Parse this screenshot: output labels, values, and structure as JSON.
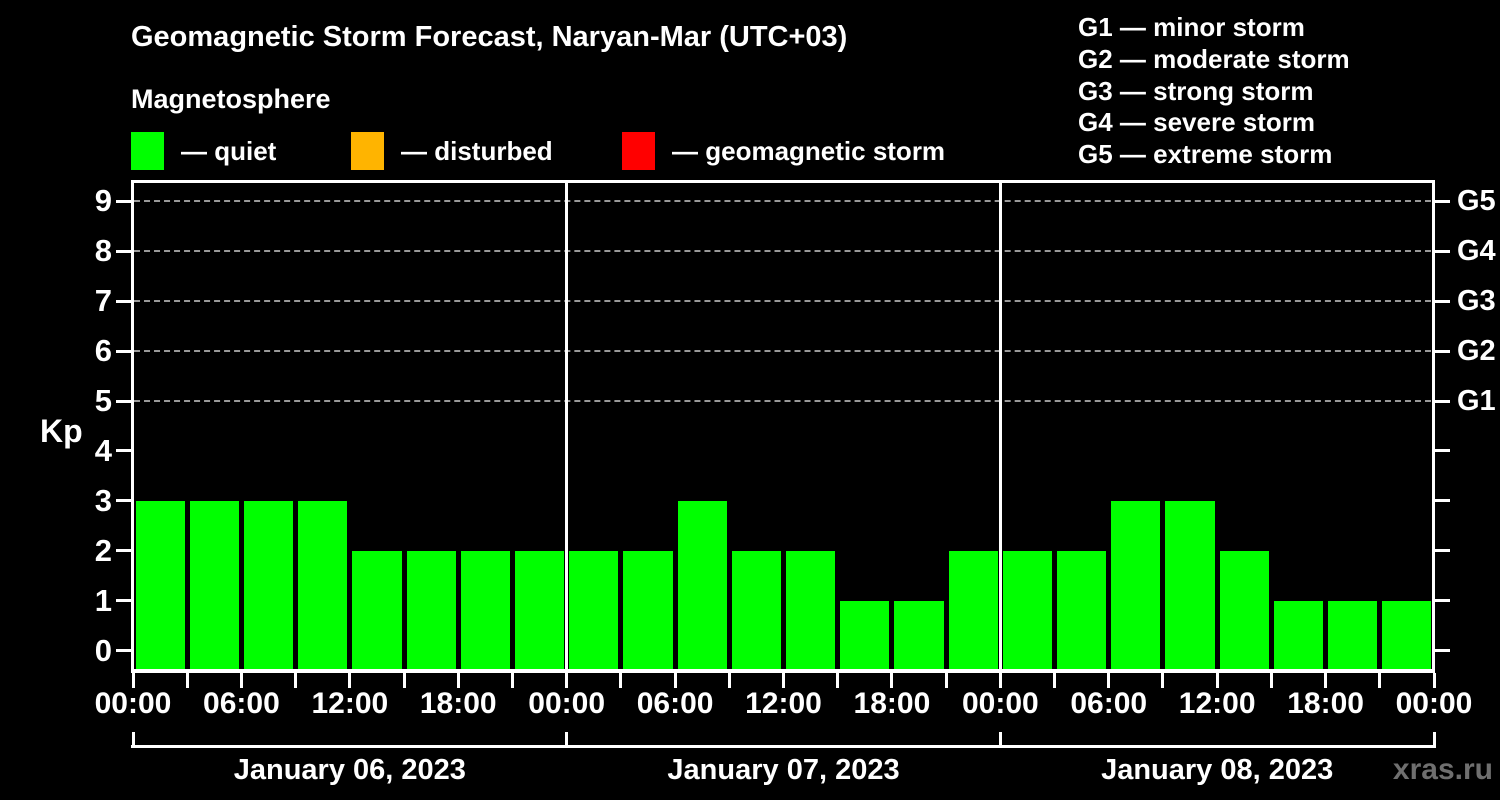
{
  "header": {
    "status_legend": [
      {
        "name": "quiet",
        "color": "#00FF00",
        "label": "— quiet"
      },
      {
        "name": "disturbed",
        "color": "#FFB400",
        "label": "— disturbed"
      },
      {
        "name": "storm",
        "color": "#FF0000",
        "label": "— geomagnetic storm"
      }
    ],
    "g_scale_legend": [
      "G1 — minor storm",
      "G2 — moderate storm",
      "G3 — strong storm",
      "G4 — severe storm",
      "G5 — extreme storm"
    ]
  },
  "chart_data": {
    "type": "bar",
    "title": "Geomagnetic Storm Forecast, Naryan-Mar (UTC+03)",
    "subtitle": "Magnetosphere",
    "ylabel": "Kp",
    "ylim": [
      0,
      9
    ],
    "y_ticks": [
      0,
      1,
      2,
      3,
      4,
      5,
      6,
      7,
      8,
      9
    ],
    "gridlines_at": [
      5,
      6,
      7,
      8,
      9
    ],
    "grid": "dashed, only at storm levels G1-G5",
    "right_axis_labels": [
      {
        "kp": 9,
        "label": "G5"
      },
      {
        "kp": 8,
        "label": "G4"
      },
      {
        "kp": 7,
        "label": "G3"
      },
      {
        "kp": 6,
        "label": "G2"
      },
      {
        "kp": 5,
        "label": "G1"
      }
    ],
    "hours_per_bar": 3,
    "bar_color": "#00FF00",
    "x_tick_labels": [
      "00:00",
      "06:00",
      "12:00",
      "18:00",
      "00:00",
      "06:00",
      "12:00",
      "18:00",
      "00:00",
      "06:00",
      "12:00",
      "18:00",
      "00:00"
    ],
    "days": [
      {
        "date": "January 06, 2023",
        "values": [
          3,
          3,
          3,
          3,
          2,
          2,
          2,
          2
        ]
      },
      {
        "date": "January 07, 2023",
        "values": [
          2,
          2,
          3,
          2,
          2,
          1,
          1,
          2
        ]
      },
      {
        "date": "January 08, 2023",
        "values": [
          2,
          2,
          3,
          3,
          2,
          1,
          1,
          1
        ]
      }
    ]
  },
  "watermark": "xras.ru",
  "colors": {
    "background": "#000000",
    "text": "#FFFFFF",
    "axis": "#FFFFFF",
    "grid": "#999999",
    "watermark": "#6F6F6F"
  }
}
